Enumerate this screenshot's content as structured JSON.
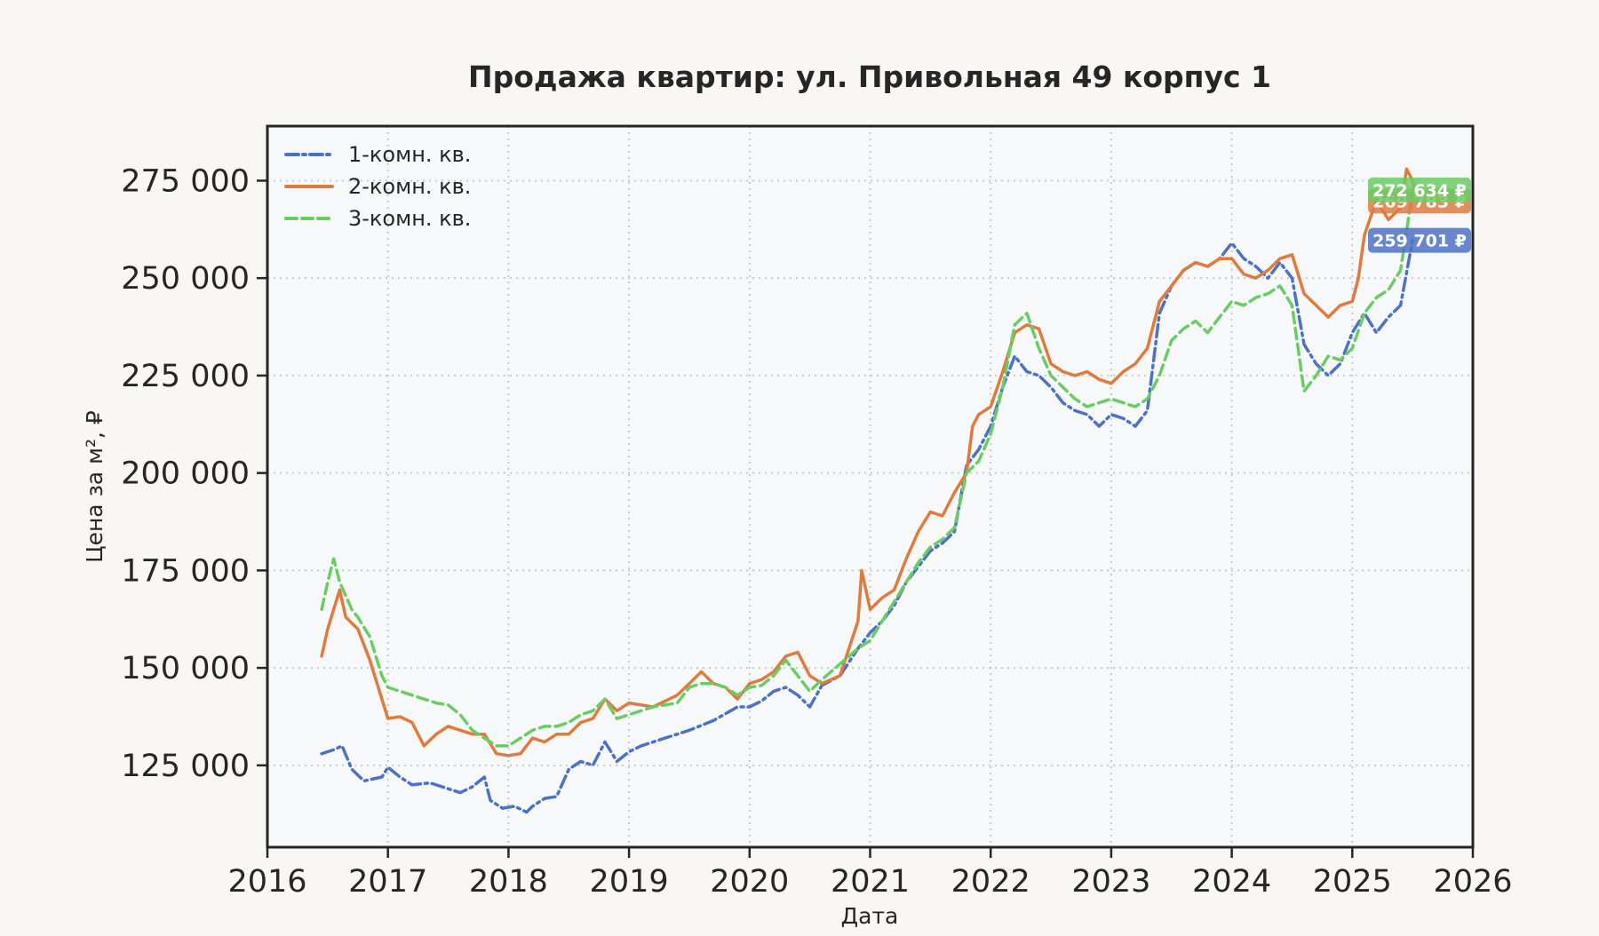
{
  "chart_data": {
    "type": "line",
    "title": "Продажа квартир: ул. Привольная 49 корпус 1",
    "xlabel": "Дата",
    "ylabel": "Цена за м², ₽",
    "xlim": [
      2016.0,
      2026.0
    ],
    "ylim": [
      104000,
      289000
    ],
    "x_ticks": [
      2016,
      2017,
      2018,
      2019,
      2020,
      2021,
      2022,
      2023,
      2024,
      2025,
      2026
    ],
    "x_tick_labels": [
      "2016",
      "2017",
      "2018",
      "2019",
      "2020",
      "2021",
      "2022",
      "2023",
      "2024",
      "2025",
      "2026"
    ],
    "y_ticks": [
      125000,
      150000,
      175000,
      200000,
      225000,
      250000,
      275000
    ],
    "y_tick_labels": [
      "125 000",
      "150 000",
      "175 000",
      "200 000",
      "225 000",
      "250 000",
      "275 000"
    ],
    "grid": true,
    "legend_position": "top-left",
    "series": [
      {
        "name": "1-комн. кв.",
        "color": "#4c72c4",
        "line_style": "dash-dot",
        "end_label": "259 701 ₽",
        "x": [
          2016.45,
          2016.55,
          2016.62,
          2016.7,
          2016.8,
          2016.95,
          2017.0,
          2017.1,
          2017.2,
          2017.35,
          2017.5,
          2017.6,
          2017.7,
          2017.8,
          2017.85,
          2017.95,
          2018.05,
          2018.15,
          2018.2,
          2018.3,
          2018.4,
          2018.5,
          2018.6,
          2018.7,
          2018.8,
          2018.9,
          2019.0,
          2019.1,
          2019.3,
          2019.5,
          2019.7,
          2019.9,
          2020.0,
          2020.1,
          2020.2,
          2020.3,
          2020.4,
          2020.5,
          2020.6,
          2020.75,
          2020.9,
          2021.0,
          2021.1,
          2021.2,
          2021.3,
          2021.4,
          2021.5,
          2021.6,
          2021.7,
          2021.8,
          2021.9,
          2022.0,
          2022.1,
          2022.2,
          2022.3,
          2022.4,
          2022.5,
          2022.6,
          2022.7,
          2022.8,
          2022.9,
          2023.0,
          2023.1,
          2023.2,
          2023.3,
          2023.4,
          2023.5,
          2023.6,
          2023.7,
          2023.8,
          2023.9,
          2024.0,
          2024.1,
          2024.2,
          2024.3,
          2024.4,
          2024.5,
          2024.6,
          2024.7,
          2024.8,
          2024.9,
          2025.0,
          2025.1,
          2025.2,
          2025.3,
          2025.4,
          2025.5
        ],
        "y": [
          128000,
          129000,
          130000,
          124000,
          121000,
          122000,
          124500,
          122000,
          120000,
          120500,
          119000,
          118000,
          119500,
          122000,
          116000,
          114000,
          114500,
          113000,
          114500,
          116500,
          117000,
          124000,
          126000,
          125000,
          131000,
          126000,
          128500,
          130000,
          132000,
          134000,
          136500,
          140000,
          140000,
          141500,
          144000,
          145000,
          143000,
          140000,
          145500,
          148000,
          155000,
          159000,
          162000,
          166000,
          172000,
          176000,
          180000,
          182000,
          185000,
          202000,
          206000,
          212000,
          222000,
          230000,
          226000,
          225000,
          222000,
          218000,
          216000,
          215000,
          212000,
          215000,
          214000,
          212000,
          216000,
          241000,
          248000,
          252000,
          254000,
          253000,
          255000,
          259000,
          255000,
          253000,
          250000,
          254000,
          250000,
          233000,
          228000,
          225000,
          228000,
          236000,
          241000,
          236000,
          240000,
          243000,
          259701
        ]
      },
      {
        "name": "2-комн. кв.",
        "color": "#e07b3f",
        "line_style": "solid",
        "end_label": "269 783 ₽",
        "x": [
          2016.45,
          2016.5,
          2016.55,
          2016.6,
          2016.65,
          2016.75,
          2016.85,
          2017.0,
          2017.1,
          2017.2,
          2017.3,
          2017.4,
          2017.5,
          2017.6,
          2017.7,
          2017.8,
          2017.9,
          2018.0,
          2018.1,
          2018.2,
          2018.3,
          2018.4,
          2018.5,
          2018.6,
          2018.7,
          2018.8,
          2018.9,
          2019.0,
          2019.2,
          2019.4,
          2019.5,
          2019.6,
          2019.7,
          2019.8,
          2019.9,
          2020.0,
          2020.1,
          2020.2,
          2020.3,
          2020.4,
          2020.5,
          2020.6,
          2020.75,
          2020.9,
          2020.93,
          2021.0,
          2021.1,
          2021.2,
          2021.3,
          2021.4,
          2021.5,
          2021.6,
          2021.7,
          2021.8,
          2021.85,
          2021.9,
          2022.0,
          2022.1,
          2022.2,
          2022.3,
          2022.4,
          2022.5,
          2022.6,
          2022.7,
          2022.8,
          2022.9,
          2023.0,
          2023.1,
          2023.2,
          2023.3,
          2023.4,
          2023.5,
          2023.6,
          2023.7,
          2023.8,
          2023.9,
          2024.0,
          2024.1,
          2024.2,
          2024.3,
          2024.4,
          2024.5,
          2024.6,
          2024.7,
          2024.8,
          2024.9,
          2025.0,
          2025.05,
          2025.1,
          2025.2,
          2025.3,
          2025.4,
          2025.45,
          2025.5,
          2025.55
        ],
        "y": [
          153000,
          160000,
          165000,
          170000,
          163000,
          160000,
          152000,
          137000,
          137500,
          136000,
          130000,
          133000,
          135000,
          134000,
          133000,
          133000,
          128000,
          127500,
          128000,
          132000,
          131000,
          133000,
          133000,
          136000,
          137000,
          142000,
          139000,
          141000,
          140000,
          143000,
          146000,
          149000,
          146000,
          145000,
          142000,
          146000,
          147000,
          149000,
          153000,
          154000,
          148000,
          146000,
          148000,
          162000,
          175000,
          165000,
          168000,
          170000,
          178000,
          185000,
          190000,
          189000,
          195000,
          200000,
          212000,
          215000,
          217000,
          226000,
          236000,
          238000,
          237000,
          228000,
          226000,
          225000,
          226000,
          224000,
          223000,
          226000,
          228000,
          232000,
          244000,
          248000,
          252000,
          254000,
          253000,
          255000,
          255000,
          251000,
          250000,
          252000,
          255000,
          256000,
          246000,
          243000,
          240000,
          243000,
          244000,
          250000,
          261000,
          270000,
          265000,
          268000,
          278000,
          275000,
          269783
        ]
      },
      {
        "name": "3-комн. кв.",
        "color": "#6acc64",
        "line_style": "dashed",
        "end_label": "272 634 ₽",
        "x": [
          2016.45,
          2016.5,
          2016.55,
          2016.6,
          2016.7,
          2016.75,
          2016.85,
          2016.95,
          2017.0,
          2017.1,
          2017.2,
          2017.3,
          2017.4,
          2017.5,
          2017.6,
          2017.7,
          2017.8,
          2017.9,
          2018.0,
          2018.1,
          2018.2,
          2018.3,
          2018.4,
          2018.5,
          2018.6,
          2018.7,
          2018.8,
          2018.9,
          2019.0,
          2019.2,
          2019.4,
          2019.5,
          2019.6,
          2019.7,
          2019.8,
          2019.9,
          2020.0,
          2020.1,
          2020.2,
          2020.3,
          2020.4,
          2020.5,
          2020.6,
          2020.75,
          2020.9,
          2021.0,
          2021.1,
          2021.2,
          2021.3,
          2021.4,
          2021.5,
          2021.6,
          2021.7,
          2021.8,
          2021.9,
          2022.0,
          2022.1,
          2022.2,
          2022.3,
          2022.4,
          2022.5,
          2022.6,
          2022.7,
          2022.8,
          2022.9,
          2023.0,
          2023.1,
          2023.2,
          2023.3,
          2023.4,
          2023.5,
          2023.6,
          2023.7,
          2023.8,
          2023.9,
          2024.0,
          2024.1,
          2024.2,
          2024.3,
          2024.4,
          2024.5,
          2024.6,
          2024.7,
          2024.8,
          2024.9,
          2025.0,
          2025.1,
          2025.2,
          2025.3,
          2025.4,
          2025.45,
          2025.5
        ],
        "y": [
          165000,
          172000,
          178000,
          172000,
          165000,
          163000,
          158000,
          148000,
          145000,
          144000,
          143000,
          142000,
          141000,
          140500,
          138000,
          134000,
          132000,
          130000,
          130000,
          132000,
          134000,
          135000,
          135000,
          136000,
          138000,
          139000,
          142000,
          137000,
          138000,
          140000,
          141000,
          145000,
          146000,
          146000,
          145000,
          143000,
          145000,
          145500,
          148000,
          152000,
          148000,
          144000,
          147000,
          151000,
          155000,
          157000,
          162000,
          167000,
          172000,
          177000,
          181000,
          183000,
          186000,
          200000,
          203000,
          210000,
          222000,
          238000,
          241000,
          232000,
          225000,
          222000,
          219000,
          217000,
          218000,
          219000,
          218000,
          217000,
          219000,
          225000,
          234000,
          237000,
          239000,
          236000,
          240000,
          244000,
          243000,
          245000,
          246000,
          248000,
          243000,
          221000,
          225000,
          230000,
          229000,
          232000,
          241000,
          245000,
          247000,
          252000,
          262000,
          272634
        ]
      }
    ]
  }
}
